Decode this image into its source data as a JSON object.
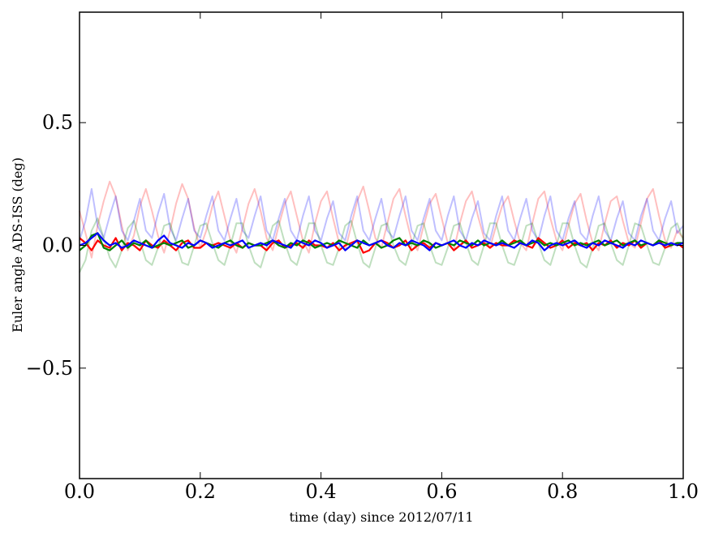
{
  "chart_data": {
    "type": "line",
    "title": "",
    "xlabel": "time (day) since 2012/07/11",
    "ylabel": "Euler angle ADS-ISS (deg)",
    "xlim": [
      0.0,
      1.0
    ],
    "ylim": [
      -0.95,
      0.95
    ],
    "grid": false,
    "legend": "none",
    "x_ticks": [
      {
        "value": 0.0,
        "label": "0.0"
      },
      {
        "value": 0.2,
        "label": "0.2"
      },
      {
        "value": 0.4,
        "label": "0.4"
      },
      {
        "value": 0.6,
        "label": "0.6"
      },
      {
        "value": 0.8,
        "label": "0.8"
      },
      {
        "value": 1.0,
        "label": "1.0"
      }
    ],
    "y_ticks": [
      {
        "value": -0.5,
        "label": "−0.5"
      },
      {
        "value": 0.0,
        "label": "0.0"
      },
      {
        "value": 0.5,
        "label": "0.5"
      }
    ],
    "x": [
      0.0,
      0.01,
      0.02,
      0.03,
      0.04,
      0.05,
      0.06,
      0.07,
      0.08,
      0.09,
      0.1,
      0.11,
      0.12,
      0.13,
      0.14,
      0.15,
      0.16,
      0.17,
      0.18,
      0.19,
      0.2,
      0.21,
      0.22,
      0.23,
      0.24,
      0.25,
      0.26,
      0.27,
      0.28,
      0.29,
      0.3,
      0.31,
      0.32,
      0.33,
      0.34,
      0.35,
      0.36,
      0.37,
      0.38,
      0.39,
      0.4,
      0.41,
      0.42,
      0.43,
      0.44,
      0.45,
      0.46,
      0.47,
      0.48,
      0.49,
      0.5,
      0.51,
      0.52,
      0.53,
      0.54,
      0.55,
      0.56,
      0.57,
      0.58,
      0.59,
      0.6,
      0.61,
      0.62,
      0.63,
      0.64,
      0.65,
      0.66,
      0.67,
      0.68,
      0.69,
      0.7,
      0.71,
      0.72,
      0.73,
      0.74,
      0.75,
      0.76,
      0.77,
      0.78,
      0.79,
      0.8,
      0.81,
      0.82,
      0.83,
      0.84,
      0.85,
      0.86,
      0.87,
      0.88,
      0.89,
      0.9,
      0.91,
      0.92,
      0.93,
      0.94,
      0.95,
      0.96,
      0.97,
      0.98,
      0.99,
      1.0
    ],
    "series": [
      {
        "color": "#ff0000",
        "opacity": 0.25,
        "width": 2,
        "values": [
          0.14,
          0.05,
          -0.05,
          0.08,
          0.18,
          0.26,
          0.2,
          0.08,
          -0.02,
          0.04,
          0.16,
          0.23,
          0.14,
          0.04,
          -0.03,
          0.06,
          0.17,
          0.25,
          0.19,
          0.07,
          -0.01,
          0.06,
          0.16,
          0.22,
          0.12,
          0.02,
          -0.03,
          0.07,
          0.17,
          0.23,
          0.14,
          0.03,
          -0.02,
          0.08,
          0.17,
          0.22,
          0.12,
          0.02,
          -0.03,
          0.09,
          0.18,
          0.22,
          0.11,
          0.01,
          -0.02,
          0.08,
          0.18,
          0.24,
          0.14,
          0.03,
          -0.01,
          0.09,
          0.19,
          0.23,
          0.12,
          0.02,
          -0.02,
          0.08,
          0.17,
          0.21,
          0.11,
          0.01,
          -0.02,
          0.09,
          0.18,
          0.22,
          0.12,
          0.03,
          -0.01,
          0.08,
          0.16,
          0.2,
          0.1,
          0.01,
          -0.02,
          0.09,
          0.19,
          0.22,
          0.11,
          0.02,
          -0.02,
          0.08,
          0.17,
          0.21,
          0.1,
          0.01,
          -0.02,
          0.09,
          0.18,
          0.2,
          0.1,
          0.01,
          -0.01,
          0.09,
          0.19,
          0.23,
          0.12,
          0.02,
          -0.01,
          0.06,
          0.03
        ]
      },
      {
        "color": "#0000ff",
        "opacity": 0.25,
        "width": 2,
        "values": [
          0.02,
          0.1,
          0.23,
          0.08,
          0.03,
          0.12,
          0.2,
          0.06,
          0.02,
          0.1,
          0.19,
          0.06,
          0.03,
          0.13,
          0.21,
          0.07,
          0.02,
          0.11,
          0.19,
          0.06,
          0.03,
          0.12,
          0.2,
          0.06,
          0.02,
          0.11,
          0.19,
          0.06,
          0.03,
          0.12,
          0.2,
          0.06,
          0.02,
          0.11,
          0.19,
          0.06,
          0.02,
          0.12,
          0.2,
          0.06,
          0.02,
          0.11,
          0.18,
          0.05,
          0.02,
          0.12,
          0.2,
          0.06,
          0.02,
          0.11,
          0.19,
          0.06,
          0.03,
          0.12,
          0.2,
          0.06,
          0.02,
          0.11,
          0.19,
          0.06,
          0.02,
          0.12,
          0.2,
          0.06,
          0.02,
          0.11,
          0.18,
          0.05,
          0.02,
          0.12,
          0.2,
          0.06,
          0.02,
          0.11,
          0.19,
          0.06,
          0.02,
          0.12,
          0.2,
          0.06,
          0.02,
          0.11,
          0.18,
          0.05,
          0.02,
          0.12,
          0.2,
          0.06,
          0.02,
          0.11,
          0.18,
          0.05,
          0.02,
          0.12,
          0.19,
          0.06,
          0.02,
          0.11,
          0.18,
          0.05,
          0.08
        ]
      },
      {
        "color": "#008000",
        "opacity": 0.25,
        "width": 2,
        "values": [
          -0.11,
          -0.06,
          0.06,
          0.11,
          0.03,
          -0.05,
          -0.09,
          -0.02,
          0.07,
          0.1,
          0.02,
          -0.06,
          -0.08,
          -0.01,
          0.08,
          0.09,
          0.01,
          -0.07,
          -0.08,
          0.0,
          0.08,
          0.09,
          0.01,
          -0.06,
          -0.08,
          0.0,
          0.09,
          0.09,
          0.0,
          -0.07,
          -0.09,
          -0.01,
          0.08,
          0.1,
          0.01,
          -0.06,
          -0.08,
          0.0,
          0.09,
          0.09,
          0.0,
          -0.07,
          -0.08,
          -0.01,
          0.08,
          0.1,
          0.01,
          -0.07,
          -0.09,
          -0.01,
          0.08,
          0.09,
          0.0,
          -0.06,
          -0.08,
          0.0,
          0.08,
          0.09,
          0.0,
          -0.07,
          -0.08,
          -0.01,
          0.08,
          0.09,
          0.01,
          -0.06,
          -0.08,
          0.0,
          0.09,
          0.09,
          0.0,
          -0.07,
          -0.08,
          -0.01,
          0.08,
          0.09,
          0.01,
          -0.06,
          -0.08,
          0.0,
          0.09,
          0.09,
          0.0,
          -0.07,
          -0.09,
          -0.01,
          0.08,
          0.09,
          0.01,
          -0.06,
          -0.08,
          0.0,
          0.09,
          0.08,
          0.0,
          -0.07,
          -0.08,
          -0.01,
          0.07,
          0.09,
          0.02
        ]
      },
      {
        "color": "#ff0000",
        "opacity": 1,
        "width": 2.2,
        "values": [
          0.03,
          0.01,
          -0.02,
          0.02,
          0.0,
          -0.01,
          0.03,
          -0.02,
          0.01,
          0.0,
          -0.02,
          0.02,
          0.0,
          -0.01,
          0.02,
          0.0,
          -0.02,
          0.01,
          0.02,
          -0.01,
          -0.01,
          0.01,
          0.0,
          0.01,
          0.0,
          -0.01,
          0.01,
          -0.01,
          0.01,
          0.0,
          0.0,
          -0.02,
          0.01,
          0.02,
          -0.01,
          0.0,
          0.01,
          -0.01,
          0.02,
          0.0,
          0.0,
          -0.01,
          0.01,
          -0.02,
          0.0,
          0.01,
          0.02,
          -0.03,
          -0.02,
          0.01,
          0.02,
          0.01,
          -0.01,
          0.0,
          0.02,
          -0.02,
          0.0,
          0.01,
          -0.01,
          0.01,
          0.0,
          0.01,
          -0.02,
          0.0,
          0.02,
          -0.01,
          0.0,
          0.01,
          -0.01,
          0.01,
          0.0,
          0.0,
          0.02,
          0.01,
          0.0,
          -0.01,
          0.03,
          0.01,
          -0.01,
          0.0,
          0.02,
          -0.01,
          0.01,
          0.0,
          0.01,
          -0.02,
          0.01,
          0.0,
          0.02,
          -0.01,
          0.01,
          0.0,
          0.02,
          -0.01,
          0.01,
          0.0,
          0.02,
          -0.01,
          0.0,
          0.01,
          -0.01
        ]
      },
      {
        "color": "#008000",
        "opacity": 1,
        "width": 2.2,
        "values": [
          -0.02,
          0.0,
          0.04,
          0.05,
          -0.01,
          -0.02,
          0.0,
          0.02,
          -0.01,
          0.01,
          0.0,
          0.02,
          -0.01,
          0.0,
          0.01,
          0.0,
          0.01,
          0.02,
          -0.01,
          0.0,
          0.02,
          0.01,
          0.0,
          -0.01,
          0.01,
          0.02,
          0.0,
          -0.01,
          0.01,
          0.0,
          0.0,
          0.01,
          0.02,
          0.0,
          -0.01,
          0.01,
          0.0,
          0.02,
          0.01,
          -0.01,
          0.0,
          0.01,
          0.0,
          0.02,
          0.01,
          0.0,
          -0.01,
          0.02,
          0.0,
          0.01,
          -0.01,
          0.0,
          0.02,
          0.03,
          0.0,
          0.01,
          0.0,
          0.02,
          0.01,
          -0.01,
          0.0,
          0.01,
          0.0,
          0.02,
          0.01,
          0.0,
          0.02,
          0.0,
          0.01,
          0.0,
          0.02,
          0.0,
          0.01,
          0.02,
          0.0,
          0.01,
          0.02,
          0.0,
          0.01,
          0.0,
          0.01,
          0.02,
          0.0,
          0.01,
          0.0,
          0.01,
          0.02,
          0.0,
          0.01,
          0.02,
          0.0,
          0.01,
          0.02,
          0.0,
          0.01,
          0.0,
          0.02,
          0.01,
          0.0,
          0.01,
          0.01
        ]
      },
      {
        "color": "#0000ff",
        "opacity": 1,
        "width": 2.2,
        "values": [
          0.0,
          0.01,
          0.03,
          0.05,
          0.02,
          0.0,
          0.01,
          -0.01,
          0.0,
          0.02,
          0.01,
          0.0,
          -0.01,
          0.02,
          0.04,
          0.01,
          0.0,
          -0.01,
          0.01,
          0.0,
          0.02,
          0.01,
          -0.01,
          0.0,
          0.01,
          0.0,
          0.01,
          0.02,
          -0.01,
          0.0,
          0.01,
          0.0,
          0.02,
          0.01,
          0.0,
          -0.01,
          0.02,
          0.01,
          0.0,
          0.02,
          0.01,
          -0.01,
          0.0,
          0.01,
          -0.02,
          0.0,
          0.02,
          0.01,
          0.0,
          0.01,
          0.02,
          0.0,
          -0.01,
          0.01,
          0.0,
          0.02,
          0.01,
          0.0,
          -0.02,
          0.01,
          0.0,
          0.01,
          0.02,
          0.0,
          -0.01,
          0.01,
          0.0,
          0.02,
          0.01,
          0.0,
          0.01,
          0.0,
          -0.01,
          0.01,
          0.0,
          0.02,
          0.01,
          -0.02,
          0.0,
          0.01,
          0.0,
          0.01,
          0.02,
          0.0,
          -0.01,
          0.01,
          0.0,
          0.02,
          0.01,
          0.0,
          -0.01,
          0.01,
          0.0,
          0.02,
          0.01,
          0.0,
          0.01,
          0.0,
          0.01,
          0.0,
          0.01
        ]
      }
    ]
  }
}
